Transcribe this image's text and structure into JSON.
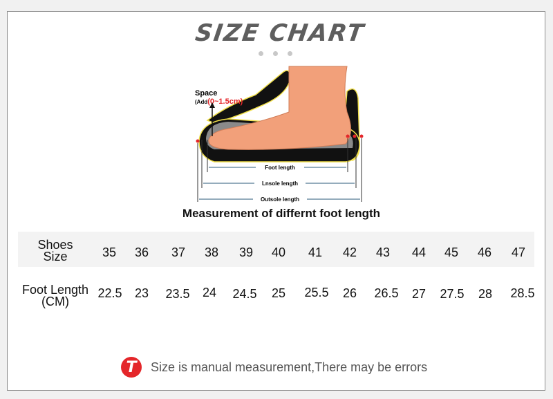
{
  "title": "SIZE CHART",
  "illustration": {
    "space_label": "Space",
    "space_add_prefix": "(Add",
    "space_add_value": "(0~1.5cm)",
    "foot_length": "Foot length",
    "insole_length": "Lnsole length",
    "outsole_length": "Outsole length",
    "caption": "Measurement of differnt foot length"
  },
  "table": {
    "size_label_line1": "Shoes",
    "size_label_line2": "Size",
    "length_label_line1": "Foot Length",
    "length_label_line2": "(CM)",
    "sizes": [
      "35",
      "36",
      "37",
      "38",
      "39",
      "40",
      "41",
      "42",
      "43",
      "44",
      "45",
      "46",
      "47"
    ],
    "lengths": [
      "22.5",
      "23",
      "23.5",
      "24",
      "24.5",
      "25",
      "25.5",
      "26",
      "26.5",
      "27",
      "27.5",
      "28",
      "28.5"
    ]
  },
  "note": {
    "icon": "T",
    "text": "Size is manual measurement,There may be errors"
  },
  "colors": {
    "accent": "#e4262a",
    "title": "#5e5e5e"
  }
}
